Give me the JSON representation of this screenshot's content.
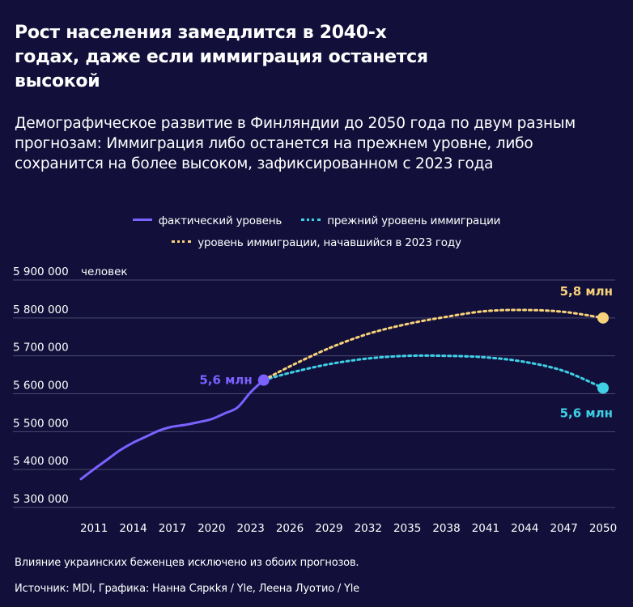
{
  "title": "Рост населения замедлится в 2040-х годах, даже если иммиграция останется высокой",
  "subtitle": "Демографическое развитие в Финляндии до 2050 года по двум разным прогнозам: Иммиграция либо останется на прежнем уровне, либо сохранится на более высоком, зафиксированном с 2023 года",
  "legend": {
    "actual": "фактический уровень",
    "previous": "прежний уровень иммиграции",
    "higher": "уровень иммиграции, начавшийся в 2023 году"
  },
  "footnote": "Влияние украинских беженцев исключено из обоих прогнозов.",
  "source": "Источник: MDI, Графика: Нанна Сяркkя / Yle,  Леена Луотио / Yle",
  "colors": {
    "actual": "#7b61ff",
    "previous": "#3fd0e6",
    "higher": "#f7d27a",
    "background": "#12103a",
    "grid": "#4a4870"
  },
  "chart_data": {
    "type": "line",
    "ylabel": "человек",
    "ylim": [
      5300000,
      5900000
    ],
    "yticks": [
      5300000,
      5400000,
      5500000,
      5600000,
      5700000,
      5800000,
      5900000
    ],
    "ytick_labels": [
      "5 300 000",
      "5 400 000",
      "5 500 000",
      "5 600 000",
      "5 700 000",
      "5 800 000",
      "5 900 000"
    ],
    "xlim": [
      2010,
      2050
    ],
    "xticks": [
      2011,
      2014,
      2017,
      2020,
      2023,
      2026,
      2029,
      2032,
      2035,
      2038,
      2041,
      2044,
      2047,
      2050
    ],
    "grid": true,
    "series": [
      {
        "name": "фактический уровень",
        "x": [
          2010,
          2011,
          2012,
          2013,
          2014,
          2015,
          2016,
          2017,
          2018,
          2019,
          2020,
          2021,
          2022,
          2023,
          2024
        ],
        "y": [
          5375000,
          5401000,
          5426000,
          5451000,
          5471000,
          5487000,
          5503000,
          5513000,
          5518000,
          5525000,
          5533000,
          5548000,
          5564000,
          5604000,
          5636000
        ]
      },
      {
        "name": "прежний уровень иммиграции",
        "x": [
          2024,
          2026,
          2029,
          2032,
          2035,
          2038,
          2041,
          2044,
          2047,
          2050
        ],
        "y": [
          5636000,
          5655000,
          5678000,
          5693000,
          5700000,
          5700000,
          5696000,
          5684000,
          5660000,
          5615000
        ]
      },
      {
        "name": "уровень иммиграции, начавшийся в 2023 году",
        "x": [
          2024,
          2026,
          2029,
          2032,
          2035,
          2038,
          2041,
          2044,
          2047,
          2050
        ],
        "y": [
          5636000,
          5672000,
          5720000,
          5758000,
          5784000,
          5803000,
          5818000,
          5821000,
          5816000,
          5800000
        ]
      }
    ],
    "annotations": [
      {
        "text": "5,6 млн",
        "series": 0,
        "x": 2024,
        "y": 5636000,
        "color": "#7b61ff",
        "position": "left"
      },
      {
        "text": "5,8 млн",
        "series": 2,
        "x": 2050,
        "y": 5800000,
        "color": "#f7d27a",
        "position": "above"
      },
      {
        "text": "5,6 млн",
        "series": 1,
        "x": 2050,
        "y": 5615000,
        "color": "#3fd0e6",
        "position": "below"
      }
    ]
  }
}
